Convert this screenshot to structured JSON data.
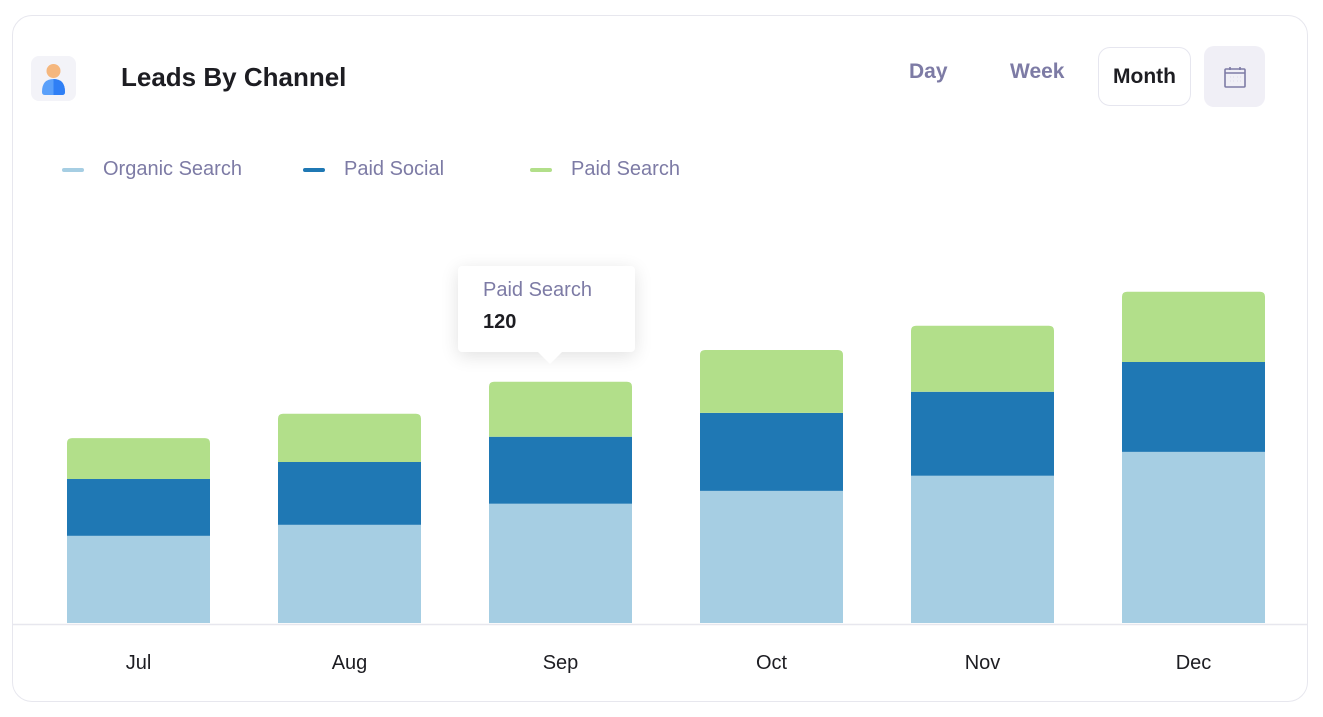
{
  "header": {
    "title": "Leads By Channel",
    "icon": "user-icon"
  },
  "period_tabs": [
    {
      "label": "Day",
      "active": false
    },
    {
      "label": "Week",
      "active": false
    },
    {
      "label": "Month",
      "active": true
    }
  ],
  "calendar_button": {
    "icon": "calendar-icon"
  },
  "tooltip": {
    "series": "Paid Search",
    "value": "120"
  },
  "chart_data": {
    "type": "bar",
    "stacked": true,
    "categories": [
      "Jul",
      "Aug",
      "Sep",
      "Oct",
      "Nov",
      "Dec"
    ],
    "series": [
      {
        "name": "Organic Search",
        "color": "#a6cee3",
        "values": [
          190,
          214,
          260,
          288,
          321,
          373
        ]
      },
      {
        "name": "Paid Social",
        "color": "#1f78b4",
        "values": [
          124,
          137,
          146,
          170,
          183,
          196
        ]
      },
      {
        "name": "Paid Search",
        "color": "#b2df8a",
        "values": [
          89,
          105,
          120,
          137,
          144,
          153
        ]
      }
    ],
    "ylim": [
      0,
      800
    ],
    "grid": false,
    "legend": "top-left",
    "xlabel": "",
    "ylabel": ""
  }
}
